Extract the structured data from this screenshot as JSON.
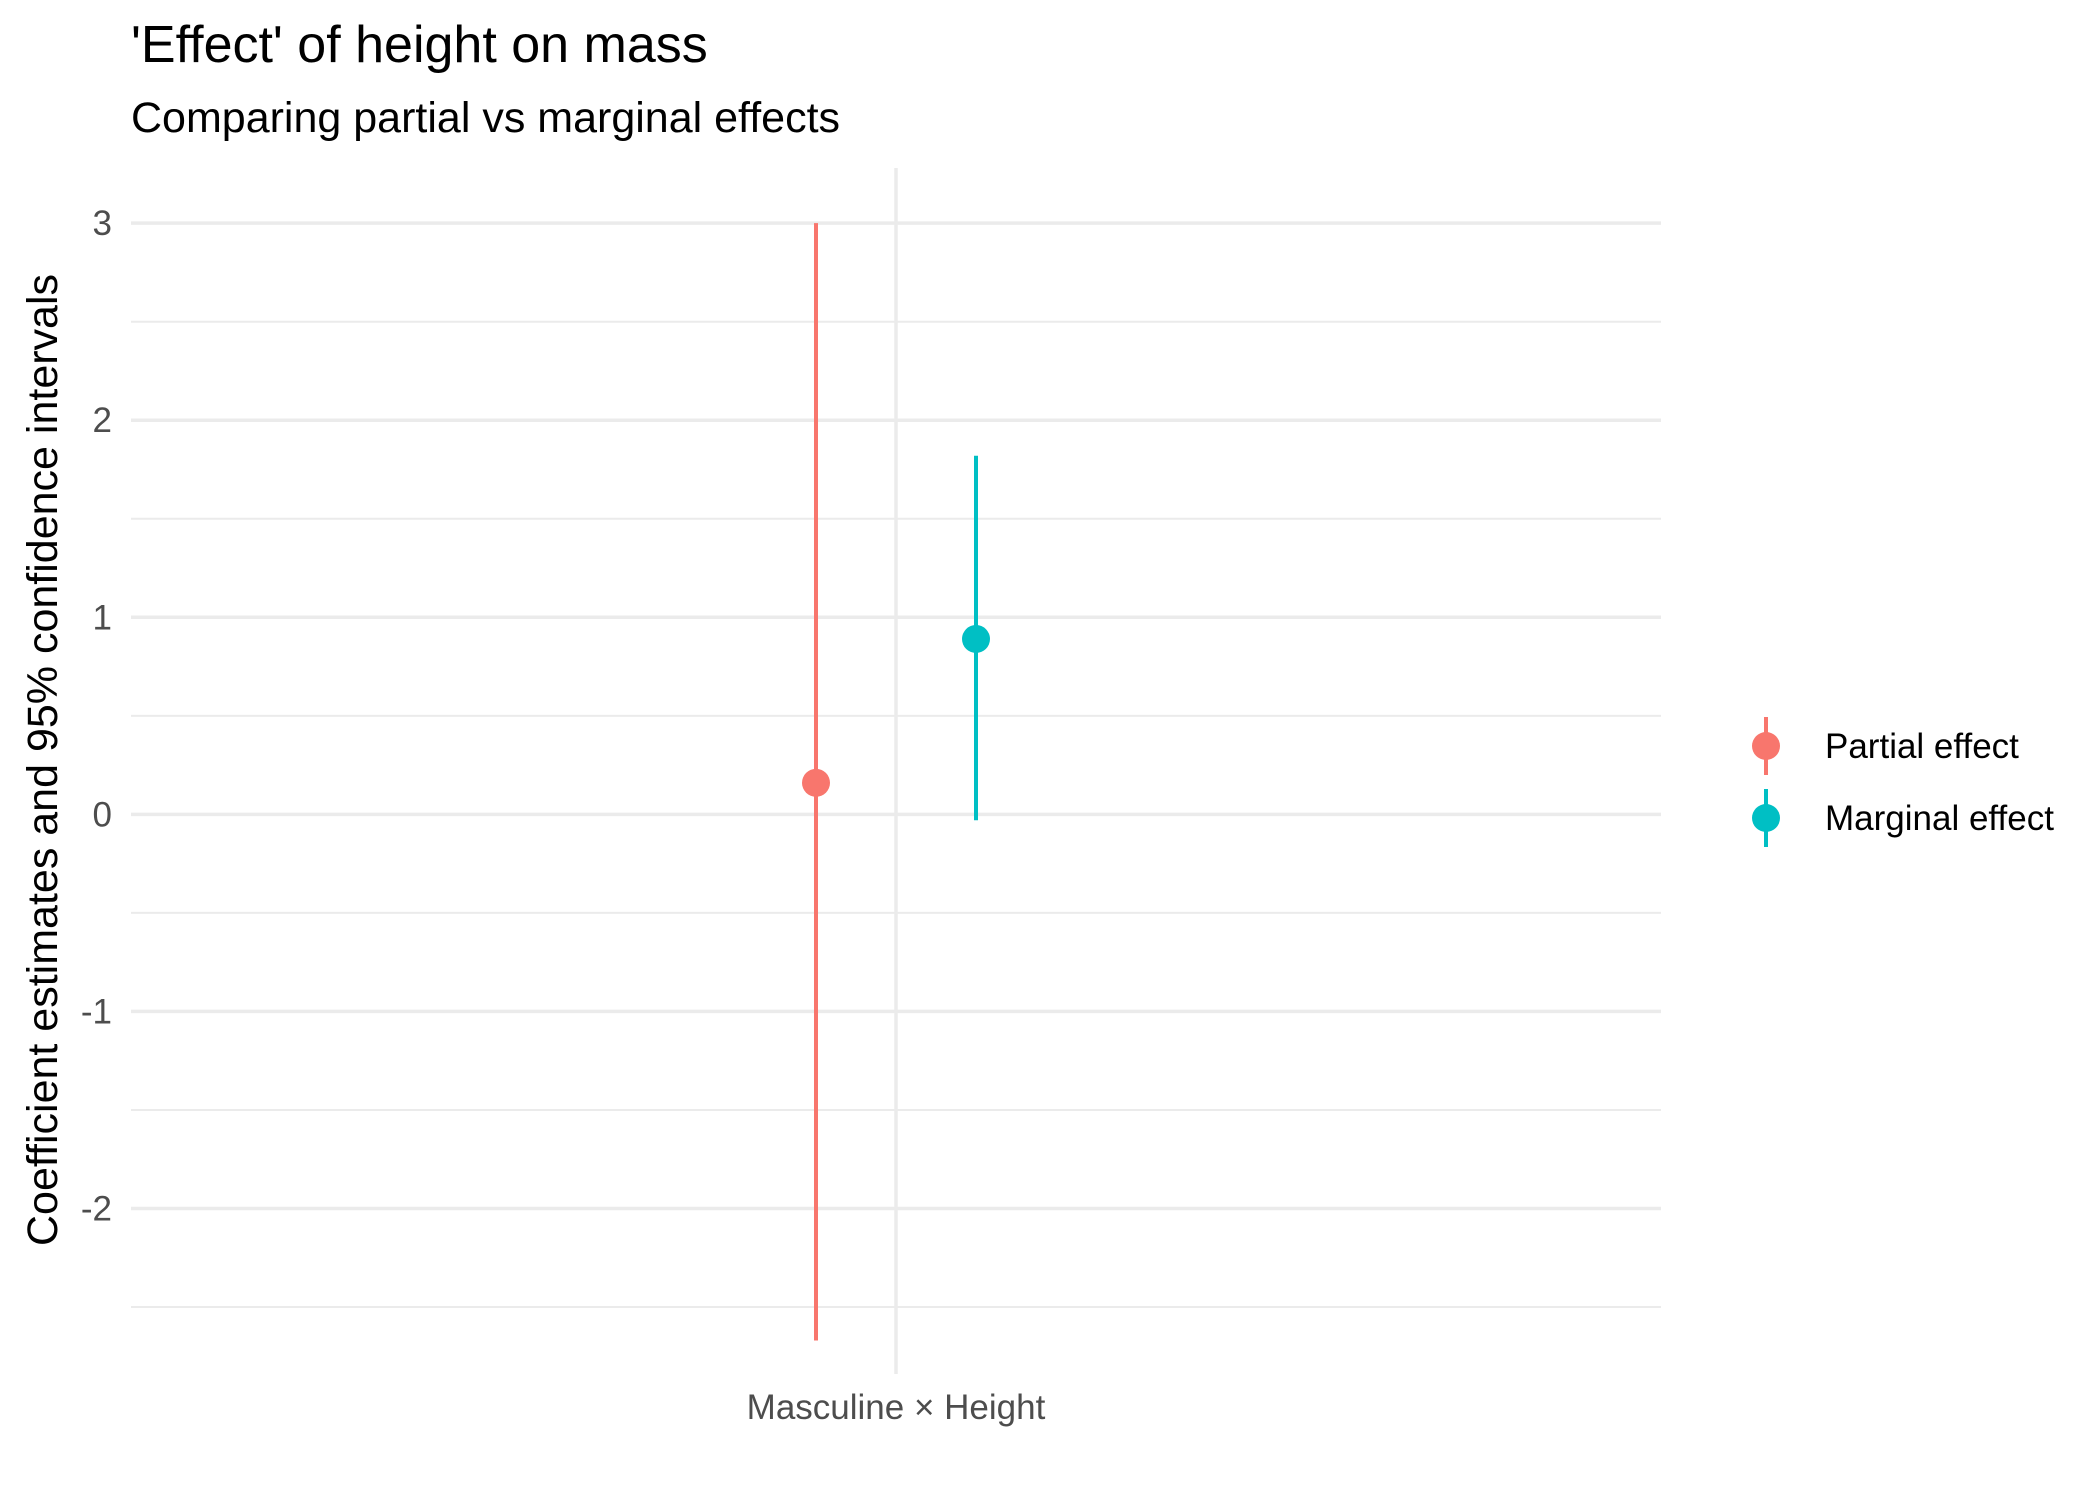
{
  "chart_data": {
    "type": "pointrange",
    "title": "'Effect' of height on mass",
    "subtitle": "Comparing partial vs marginal effects",
    "xlabel": "",
    "ylabel": "Coefficient estimates and 95% confidence intervals",
    "categories": [
      "Masculine × Height"
    ],
    "ylim": [
      -2.84,
      3.28
    ],
    "y_ticks": [
      -2,
      -1,
      0,
      1,
      2,
      3
    ],
    "y_tick_labels": [
      "-2",
      "-1",
      "0",
      "1",
      "2",
      "3"
    ],
    "grid": true,
    "legend_position": "right",
    "series": [
      {
        "name": "Partial effect",
        "color": "#F8766D",
        "estimate": 0.16,
        "lower": -2.67,
        "upper": 3.0
      },
      {
        "name": "Marginal effect",
        "color": "#00BFC4",
        "estimate": 0.89,
        "lower": -0.03,
        "upper": 1.82
      }
    ]
  }
}
